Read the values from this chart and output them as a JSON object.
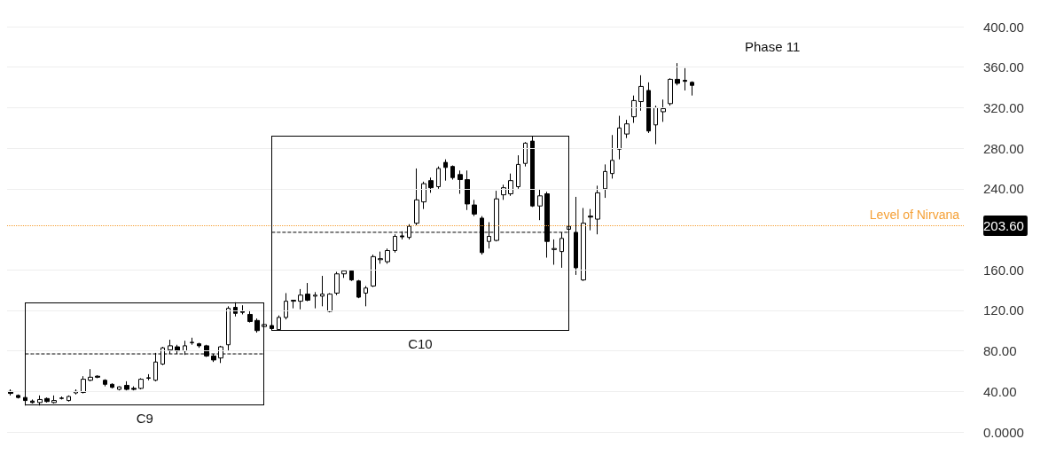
{
  "chart_data": {
    "type": "candlestick",
    "annotations": [
      "C9",
      "C10",
      "Phase 11"
    ],
    "categories": [
      null,
      null,
      null,
      null,
      null,
      null,
      null,
      null,
      null,
      null,
      null,
      null,
      null,
      null,
      null,
      null,
      null,
      null,
      null,
      null,
      null,
      null,
      null,
      null,
      null,
      null,
      null,
      null,
      null,
      null,
      null,
      null,
      null,
      null,
      null,
      null,
      null,
      null,
      null,
      null,
      null,
      null,
      null,
      null,
      null,
      null,
      null,
      null,
      null,
      null,
      null,
      null,
      null,
      null,
      null,
      null,
      null,
      null,
      null,
      null,
      null,
      null,
      null,
      null,
      null,
      null,
      null,
      null,
      null,
      null,
      null,
      null,
      null,
      null,
      null,
      null,
      null,
      null,
      null,
      null,
      null,
      null,
      null,
      null,
      null,
      null,
      null,
      null,
      null,
      null,
      null,
      null,
      null,
      null,
      null,
      null,
      null,
      null,
      null,
      null,
      null,
      null,
      null,
      null,
      null,
      null,
      null,
      null,
      null,
      null,
      null,
      null,
      null,
      null,
      null,
      null,
      null,
      null,
      null,
      null,
      null,
      null,
      null,
      null,
      null,
      null,
      null,
      null,
      null,
      null,
      null,
      null
    ],
    "ohlc": [
      [
        40,
        42,
        36,
        38
      ],
      [
        36,
        37,
        33,
        34
      ],
      [
        34,
        35,
        26,
        31
      ],
      [
        30.5,
        32,
        28,
        29
      ],
      [
        29,
        36,
        26,
        32
      ],
      [
        33,
        34,
        29,
        30
      ],
      [
        29,
        36,
        28,
        31
      ],
      [
        33,
        35,
        32,
        33.5
      ],
      [
        31,
        36,
        30,
        35
      ],
      [
        38.5,
        42,
        37,
        40
      ],
      [
        39,
        55,
        38,
        52
      ],
      [
        51,
        62,
        50,
        54
      ],
      [
        55,
        56,
        53,
        54
      ],
      [
        51,
        52,
        45,
        47
      ],
      [
        47,
        48,
        43,
        44
      ],
      [
        42,
        45,
        41,
        44.5
      ],
      [
        46,
        50,
        41,
        42
      ],
      [
        43,
        45,
        41,
        42
      ],
      [
        43,
        53,
        42,
        52
      ],
      [
        53,
        57,
        51,
        53.5
      ],
      [
        51,
        78,
        50,
        69
      ],
      [
        67,
        84,
        66,
        83
      ],
      [
        81,
        91,
        77,
        85
      ],
      [
        84,
        86,
        77,
        80
      ],
      [
        80,
        90,
        76,
        85
      ],
      [
        88,
        93,
        86,
        88.5
      ],
      [
        87,
        88,
        83,
        85
      ],
      [
        85,
        86,
        74,
        75
      ],
      [
        75,
        77,
        69,
        71
      ],
      [
        73,
        85,
        68,
        84
      ],
      [
        86,
        124,
        80,
        122
      ],
      [
        123,
        128,
        114,
        117
      ],
      [
        119,
        125,
        116,
        118
      ],
      [
        116,
        120,
        108,
        109
      ],
      [
        110,
        112,
        98,
        100
      ],
      [
        104,
        107,
        103,
        106
      ],
      [
        105,
        106,
        101,
        102
      ],
      [
        101,
        115,
        100,
        113
      ],
      [
        113,
        137,
        111,
        129
      ],
      [
        129,
        130,
        122,
        130
      ],
      [
        129,
        141,
        121,
        135
      ],
      [
        136,
        147,
        129,
        130
      ],
      [
        134,
        138,
        122,
        135
      ],
      [
        134,
        154,
        124,
        136
      ],
      [
        119,
        137,
        118,
        136
      ],
      [
        137,
        158,
        135,
        156
      ],
      [
        156,
        160,
        152,
        159
      ],
      [
        159,
        160,
        149,
        150
      ],
      [
        149,
        150,
        132,
        133
      ],
      [
        137,
        144,
        124,
        142
      ],
      [
        144,
        175,
        143,
        173
      ],
      [
        170,
        178,
        166,
        171
      ],
      [
        168,
        181,
        166,
        179
      ],
      [
        179,
        195,
        177,
        193
      ],
      [
        193.5,
        198,
        190,
        192.5
      ],
      [
        192,
        205,
        190,
        203
      ],
      [
        206,
        260,
        204,
        229
      ],
      [
        227,
        247,
        220,
        245
      ],
      [
        248,
        251,
        236,
        241
      ],
      [
        242,
        262,
        240,
        260
      ],
      [
        266,
        269,
        248,
        261
      ],
      [
        262,
        263,
        249,
        251
      ],
      [
        254,
        258,
        235,
        249
      ],
      [
        249,
        258,
        219,
        225
      ],
      [
        224,
        229,
        213,
        215
      ],
      [
        211,
        213,
        175,
        177
      ],
      [
        188,
        207,
        181,
        193
      ],
      [
        189,
        238,
        188,
        230
      ],
      [
        234,
        244,
        229,
        241
      ],
      [
        235,
        255,
        233,
        248
      ],
      [
        242,
        273,
        240,
        264
      ],
      [
        265,
        286,
        262,
        285
      ],
      [
        287,
        292,
        222,
        223
      ],
      [
        223,
        239,
        209,
        233
      ],
      [
        235,
        237,
        172,
        188
      ],
      [
        180,
        190,
        165,
        181
      ],
      [
        178,
        197,
        162,
        191
      ],
      [
        200,
        204,
        199,
        203
      ],
      [
        197,
        232,
        155,
        162
      ],
      [
        150,
        221,
        149,
        206
      ],
      [
        213,
        220,
        199,
        212
      ],
      [
        210,
        243,
        195,
        236
      ],
      [
        240,
        264,
        231,
        257
      ],
      [
        255,
        293,
        250,
        268
      ],
      [
        279,
        312,
        269,
        300
      ],
      [
        294,
        308,
        290,
        304
      ],
      [
        311,
        332,
        305,
        327
      ],
      [
        326,
        352,
        317,
        341
      ],
      [
        337,
        345,
        295,
        297
      ],
      [
        303,
        322,
        284,
        320
      ],
      [
        316,
        328,
        306,
        319
      ],
      [
        324,
        349,
        322,
        348
      ],
      [
        348,
        364,
        342,
        344
      ],
      [
        347,
        359,
        337,
        346
      ],
      [
        345,
        346,
        332,
        342
      ],
      null,
      null,
      null,
      null,
      null,
      null,
      null,
      null,
      null,
      null,
      null,
      null,
      null,
      null,
      null,
      null,
      null,
      null,
      null,
      null,
      null,
      null,
      null,
      null,
      null,
      null,
      null,
      null,
      null,
      null,
      null,
      null,
      null,
      null,
      null,
      null,
      null
    ],
    "ylim": [
      0,
      400
    ],
    "yticks": [
      {
        "value": 0,
        "label": "0.0000"
      },
      {
        "value": 40,
        "label": "40.00"
      },
      {
        "value": 80,
        "label": "80.00"
      },
      {
        "value": 120,
        "label": "120.00"
      },
      {
        "value": 160,
        "label": "160.00"
      },
      {
        "value": 203.6,
        "label": "203.60"
      },
      {
        "value": 240,
        "label": "240.00"
      },
      {
        "value": 280,
        "label": "280.00"
      },
      {
        "value": 320,
        "label": "320.00"
      },
      {
        "value": 360,
        "label": "360.00"
      },
      {
        "value": 400,
        "label": "400.00"
      }
    ],
    "ref_lines": [
      {
        "axis": "y",
        "value": 203.6,
        "label": "Level of Nirvana",
        "color": "#f5a036",
        "line_style": "dotted"
      }
    ],
    "series": [
      {
        "type": "line",
        "color": "#000000",
        "line_style": "dashed",
        "values": [
          null,
          null,
          77,
          77,
          77,
          77,
          77,
          77,
          77,
          77,
          77,
          77,
          77,
          77,
          77,
          77,
          77,
          77,
          77,
          77,
          77,
          77,
          77,
          77,
          77,
          77,
          77,
          77,
          77,
          77,
          77,
          77,
          77,
          77,
          77,
          77,
          null,
          null,
          null,
          null,
          null,
          null,
          null,
          null,
          null,
          null,
          null,
          null,
          null,
          null,
          null,
          null,
          null,
          null,
          null,
          null,
          null,
          null,
          null,
          null,
          null,
          null,
          null,
          null,
          null,
          null,
          null,
          null,
          null,
          null,
          null,
          null,
          null,
          null,
          null,
          null,
          null,
          null,
          null,
          null,
          null,
          null,
          null,
          null,
          null,
          null,
          null,
          null,
          null,
          null,
          null,
          null,
          null,
          null,
          null,
          null,
          null,
          null,
          null,
          null,
          null,
          null,
          null,
          null,
          null,
          null,
          null,
          null,
          null,
          null,
          null,
          null,
          null,
          null,
          null,
          null,
          null,
          null,
          null,
          null,
          null,
          null,
          null,
          null,
          null,
          null,
          null,
          null,
          null,
          null,
          null,
          null
        ]
      },
      {
        "type": "line",
        "color": "#000000",
        "line_style": "dashed",
        "values": [
          null,
          null,
          null,
          null,
          null,
          null,
          null,
          null,
          null,
          null,
          null,
          null,
          null,
          null,
          null,
          null,
          null,
          null,
          null,
          null,
          null,
          null,
          null,
          null,
          null,
          null,
          null,
          null,
          null,
          null,
          null,
          null,
          null,
          null,
          null,
          null,
          197,
          197,
          197,
          197,
          197,
          197,
          197,
          197,
          197,
          197,
          197,
          197,
          197,
          197,
          197,
          197,
          197,
          197,
          197,
          197,
          197,
          197,
          197,
          197,
          197,
          197,
          197,
          197,
          197,
          197,
          197,
          197,
          197,
          197,
          197,
          197,
          197,
          197,
          197,
          197,
          197,
          197,
          null,
          null,
          null,
          null,
          null,
          null,
          null,
          null,
          null,
          null,
          null,
          null,
          null,
          null,
          null,
          null,
          null,
          null,
          null,
          null,
          null,
          null,
          null,
          null,
          null,
          null,
          null,
          null,
          null,
          null,
          null,
          null,
          null,
          null,
          null,
          null,
          null,
          null,
          null,
          null,
          null,
          null,
          null,
          null,
          null,
          null,
          null,
          null,
          null,
          null,
          null,
          null,
          null,
          null
        ]
      }
    ],
    "grid": "y"
  }
}
